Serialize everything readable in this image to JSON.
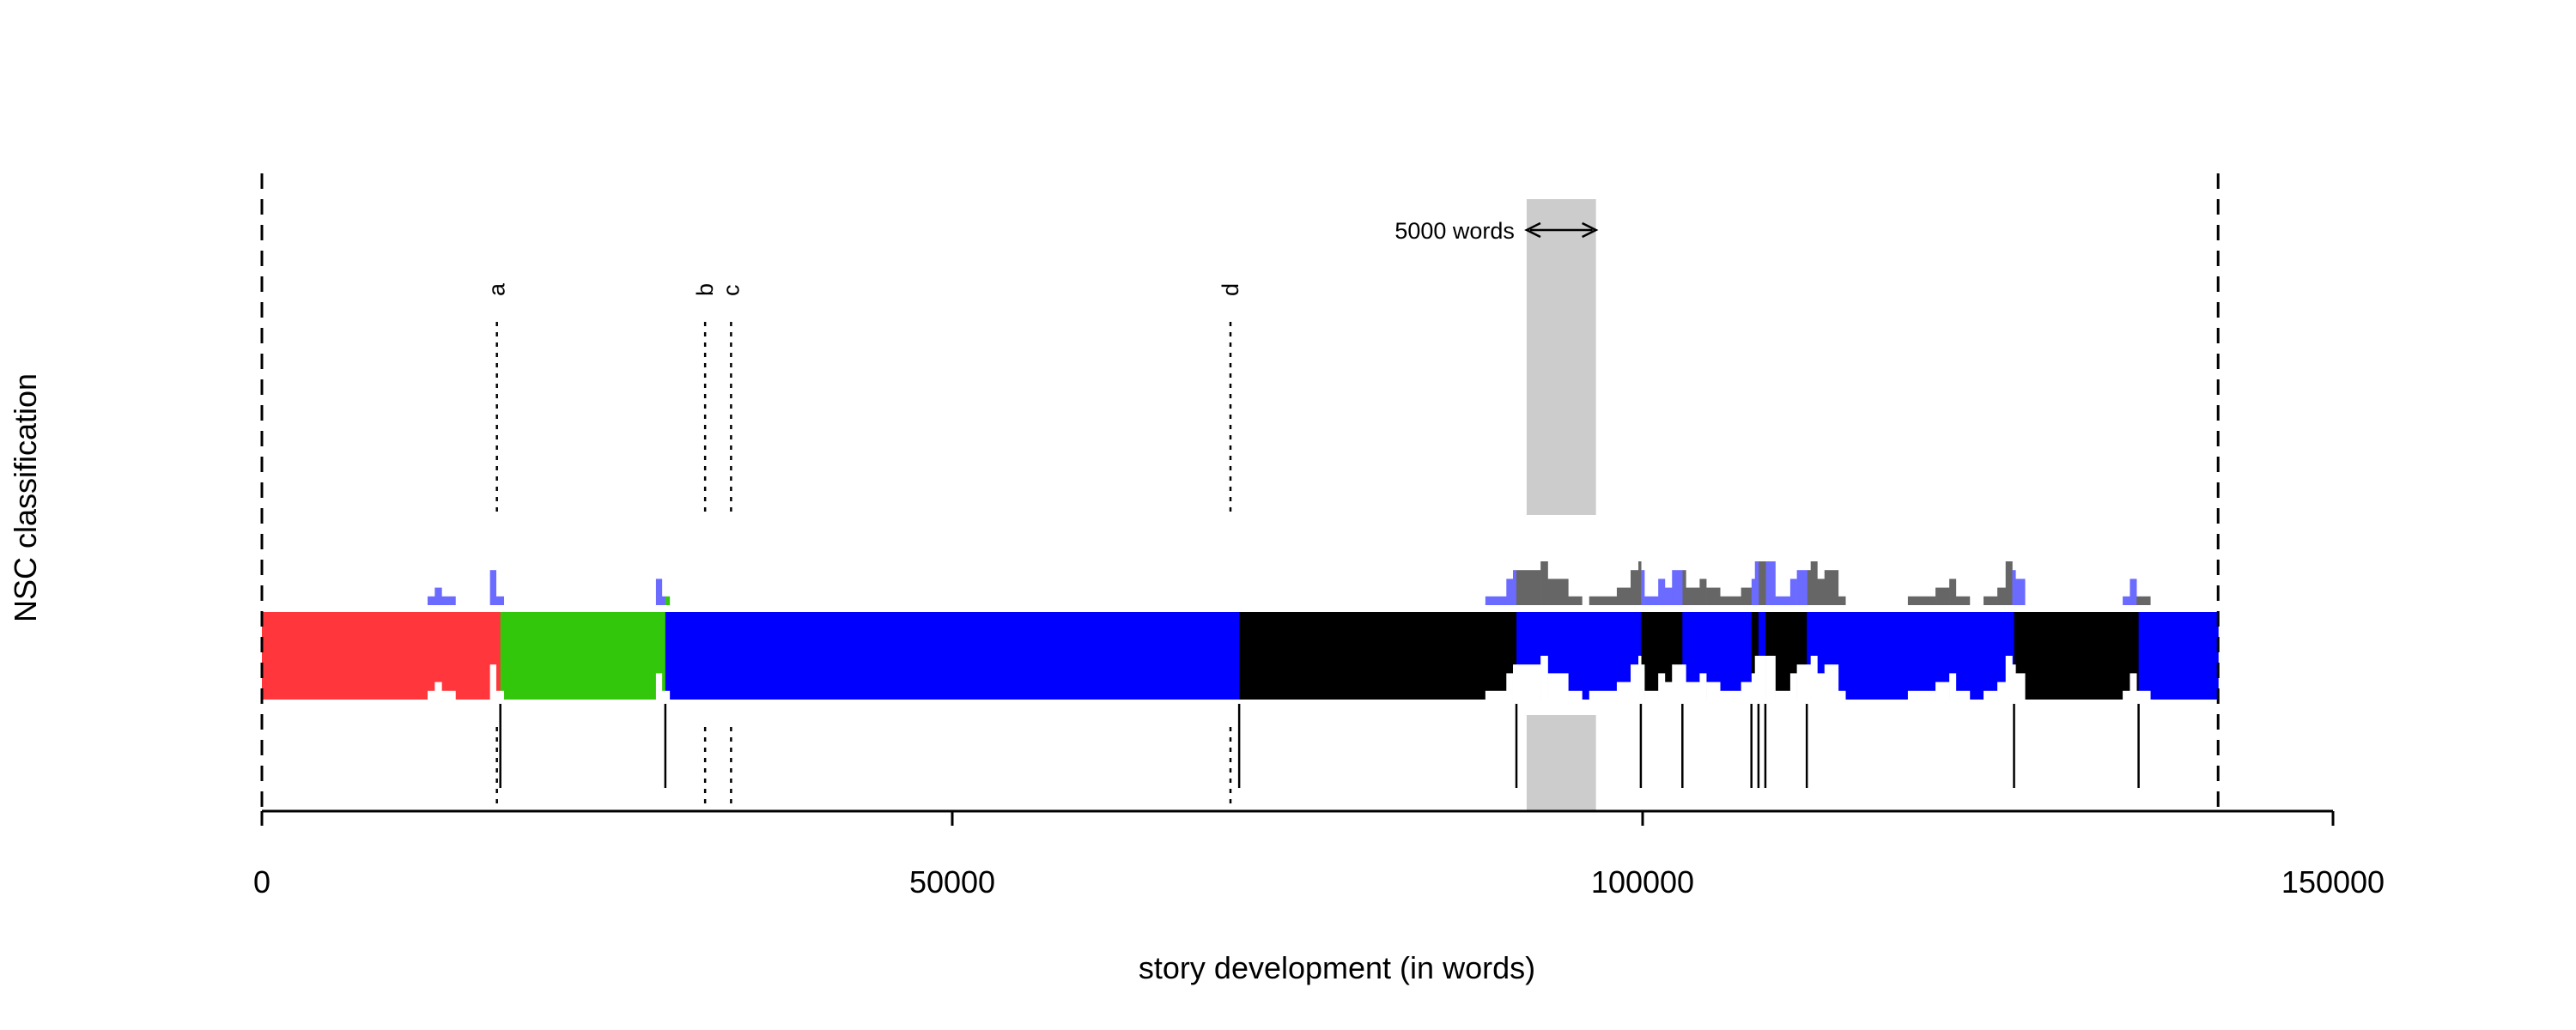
{
  "chart_data": {
    "type": "bar",
    "title": "",
    "xlabel": "story development (in words)",
    "ylabel": "NSC classification",
    "xlim": [
      0,
      150000
    ],
    "xticks": [
      0,
      50000,
      100000,
      150000
    ],
    "xtick_labels": [
      "0",
      "50000",
      "100000",
      "150000"
    ],
    "story_end": 141680,
    "colors": {
      "red": "#FF363B",
      "green": "#33C70B",
      "blue": "#0000FF",
      "black": "#000000",
      "light_blue": "#6B6BFF",
      "gray": "#666666",
      "window": "#CCCCCC"
    },
    "segments": [
      {
        "from": 0,
        "to": 17270,
        "class": "red"
      },
      {
        "from": 17270,
        "to": 29220,
        "class": "green"
      },
      {
        "from": 29220,
        "to": 70780,
        "class": "blue"
      },
      {
        "from": 70780,
        "to": 90860,
        "class": "black"
      },
      {
        "from": 90860,
        "to": 99870,
        "class": "blue"
      },
      {
        "from": 99870,
        "to": 102880,
        "class": "black"
      },
      {
        "from": 102880,
        "to": 107880,
        "class": "blue"
      },
      {
        "from": 107880,
        "to": 108390,
        "class": "black"
      },
      {
        "from": 108390,
        "to": 108890,
        "class": "blue"
      },
      {
        "from": 108890,
        "to": 111890,
        "class": "black"
      },
      {
        "from": 111890,
        "to": 126900,
        "class": "blue"
      },
      {
        "from": 126900,
        "to": 135920,
        "class": "black"
      },
      {
        "from": 135920,
        "to": 141680,
        "class": "blue"
      }
    ],
    "alternative_histogram": [
      [
        12000,
        12520,
        1,
        "light_blue"
      ],
      [
        12520,
        13020,
        2,
        "light_blue"
      ],
      [
        13020,
        14020,
        1,
        "light_blue"
      ],
      [
        16520,
        16960,
        4,
        "light_blue"
      ],
      [
        16960,
        17520,
        1,
        "light_blue"
      ],
      [
        28540,
        28970,
        3,
        "light_blue"
      ],
      [
        28970,
        29220,
        1,
        "light_blue"
      ],
      [
        29220,
        29530,
        1,
        "green"
      ],
      [
        88610,
        90130,
        1,
        "light_blue"
      ],
      [
        90130,
        90610,
        3,
        "light_blue"
      ],
      [
        90610,
        90850,
        4,
        "light_blue"
      ],
      [
        90850,
        92610,
        4,
        "gray"
      ],
      [
        92610,
        93130,
        5,
        "gray"
      ],
      [
        93130,
        94610,
        3,
        "gray"
      ],
      [
        94610,
        95610,
        1,
        "gray"
      ],
      [
        96130,
        98130,
        1,
        "gray"
      ],
      [
        98130,
        99130,
        2,
        "gray"
      ],
      [
        99130,
        99690,
        4,
        "gray"
      ],
      [
        99690,
        99890,
        5,
        "gray"
      ],
      [
        99890,
        100130,
        4,
        "light_blue"
      ],
      [
        100130,
        101130,
        1,
        "light_blue"
      ],
      [
        101130,
        101610,
        3,
        "light_blue"
      ],
      [
        101610,
        102130,
        2,
        "light_blue"
      ],
      [
        102130,
        102890,
        4,
        "light_blue"
      ],
      [
        102890,
        103130,
        4,
        "gray"
      ],
      [
        103130,
        104130,
        2,
        "gray"
      ],
      [
        104130,
        104610,
        3,
        "gray"
      ],
      [
        104610,
        105610,
        2,
        "gray"
      ],
      [
        105610,
        107130,
        1,
        "gray"
      ],
      [
        107130,
        107890,
        2,
        "gray"
      ],
      [
        107890,
        108130,
        3,
        "light_blue"
      ],
      [
        108130,
        108410,
        5,
        "light_blue"
      ],
      [
        108410,
        108930,
        5,
        "gray"
      ],
      [
        108930,
        109610,
        5,
        "light_blue"
      ],
      [
        109610,
        110690,
        1,
        "light_blue"
      ],
      [
        110690,
        111170,
        3,
        "light_blue"
      ],
      [
        111170,
        111930,
        4,
        "light_blue"
      ],
      [
        111930,
        112170,
        4,
        "gray"
      ],
      [
        112170,
        112650,
        5,
        "gray"
      ],
      [
        112650,
        113170,
        3,
        "gray"
      ],
      [
        113170,
        114170,
        4,
        "gray"
      ],
      [
        114170,
        114690,
        1,
        "gray"
      ],
      [
        119210,
        121210,
        1,
        "gray"
      ],
      [
        121210,
        122210,
        2,
        "gray"
      ],
      [
        122210,
        122690,
        3,
        "gray"
      ],
      [
        122690,
        123690,
        1,
        "gray"
      ],
      [
        124690,
        125690,
        1,
        "gray"
      ],
      [
        125690,
        126290,
        2,
        "gray"
      ],
      [
        126290,
        126770,
        5,
        "gray"
      ],
      [
        126770,
        127010,
        4,
        "light_blue"
      ],
      [
        127010,
        127690,
        3,
        "light_blue"
      ],
      [
        134770,
        135290,
        1,
        "light_blue"
      ],
      [
        135290,
        135770,
        3,
        "light_blue"
      ],
      [
        135770,
        136770,
        1,
        "gray"
      ]
    ],
    "boundaries": [
      17270,
      29220,
      70780,
      90860,
      99870,
      102880,
      107880,
      108390,
      108890,
      111890,
      126900,
      135920
    ],
    "markers": [
      {
        "label": "a",
        "x": 17020
      },
      {
        "label": "b",
        "x": 32100
      },
      {
        "label": "c",
        "x": 33980
      },
      {
        "label": "d",
        "x": 70150
      }
    ],
    "window": {
      "from": 91600,
      "to": 96620,
      "label": "5000 words"
    }
  }
}
